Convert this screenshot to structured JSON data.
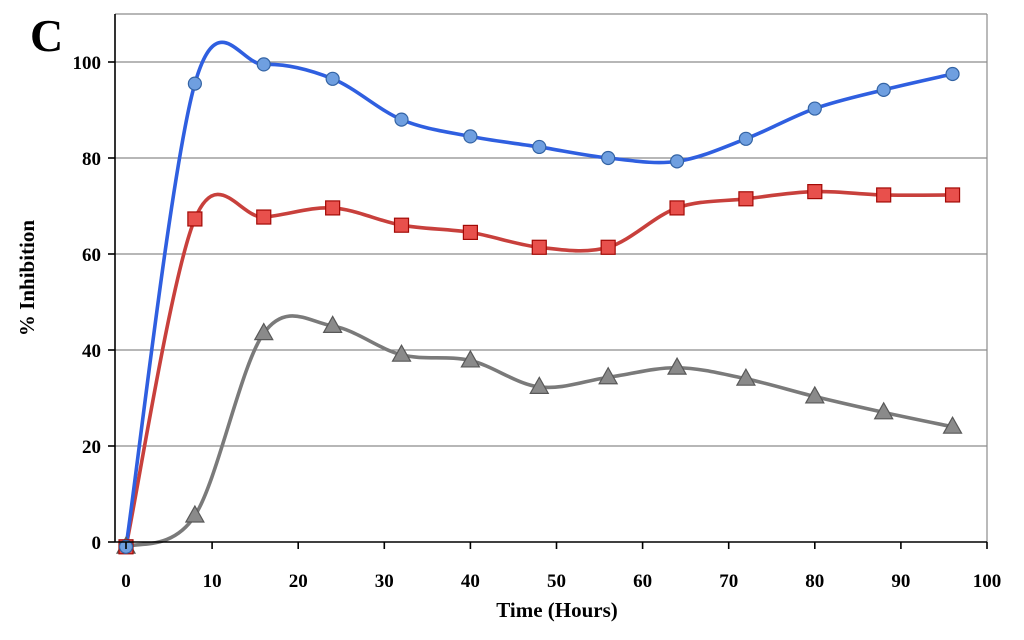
{
  "panel_label": "C",
  "chart_data": {
    "type": "line",
    "title": "",
    "xlabel": "Time (Hours)",
    "ylabel": "% Inhibition",
    "xlim": [
      0,
      100
    ],
    "ylim": [
      0,
      110
    ],
    "xticks": [
      0,
      10,
      20,
      30,
      40,
      50,
      60,
      70,
      80,
      90,
      100
    ],
    "yticks": [
      0,
      20,
      40,
      60,
      80,
      100
    ],
    "grid": "horizontal",
    "legend": "none",
    "series": [
      {
        "name": "blue-circles",
        "color": "#2f5fe0",
        "marker_color": "#6f9fe0",
        "marker": "circle",
        "x": [
          0,
          8,
          16,
          24,
          32,
          40,
          48,
          56,
          64,
          72,
          80,
          88,
          96
        ],
        "y": [
          -1,
          95.5,
          99.5,
          96.5,
          88,
          84.5,
          82.3,
          80,
          79.3,
          84,
          90.3,
          94.2,
          97.5
        ]
      },
      {
        "name": "red-squares",
        "color": "#c8403c",
        "marker_color": "#e8504c",
        "marker": "square",
        "x": [
          0,
          8,
          16,
          24,
          32,
          40,
          48,
          56,
          64,
          72,
          80,
          88,
          96
        ],
        "y": [
          -1,
          67.3,
          67.7,
          69.6,
          66,
          64.5,
          61.4,
          61.4,
          69.6,
          71.5,
          73,
          72.3,
          72.3
        ]
      },
      {
        "name": "gray-triangles",
        "color": "#7a7a7a",
        "marker_color": "#8a8a8a",
        "marker": "triangle",
        "x": [
          0,
          8,
          16,
          24,
          32,
          40,
          48,
          56,
          64,
          72,
          80,
          88,
          96
        ],
        "y": [
          -1,
          5.5,
          43.5,
          45,
          39,
          37.8,
          32.3,
          34.3,
          36.3,
          34,
          30.3,
          27,
          24
        ]
      }
    ]
  }
}
